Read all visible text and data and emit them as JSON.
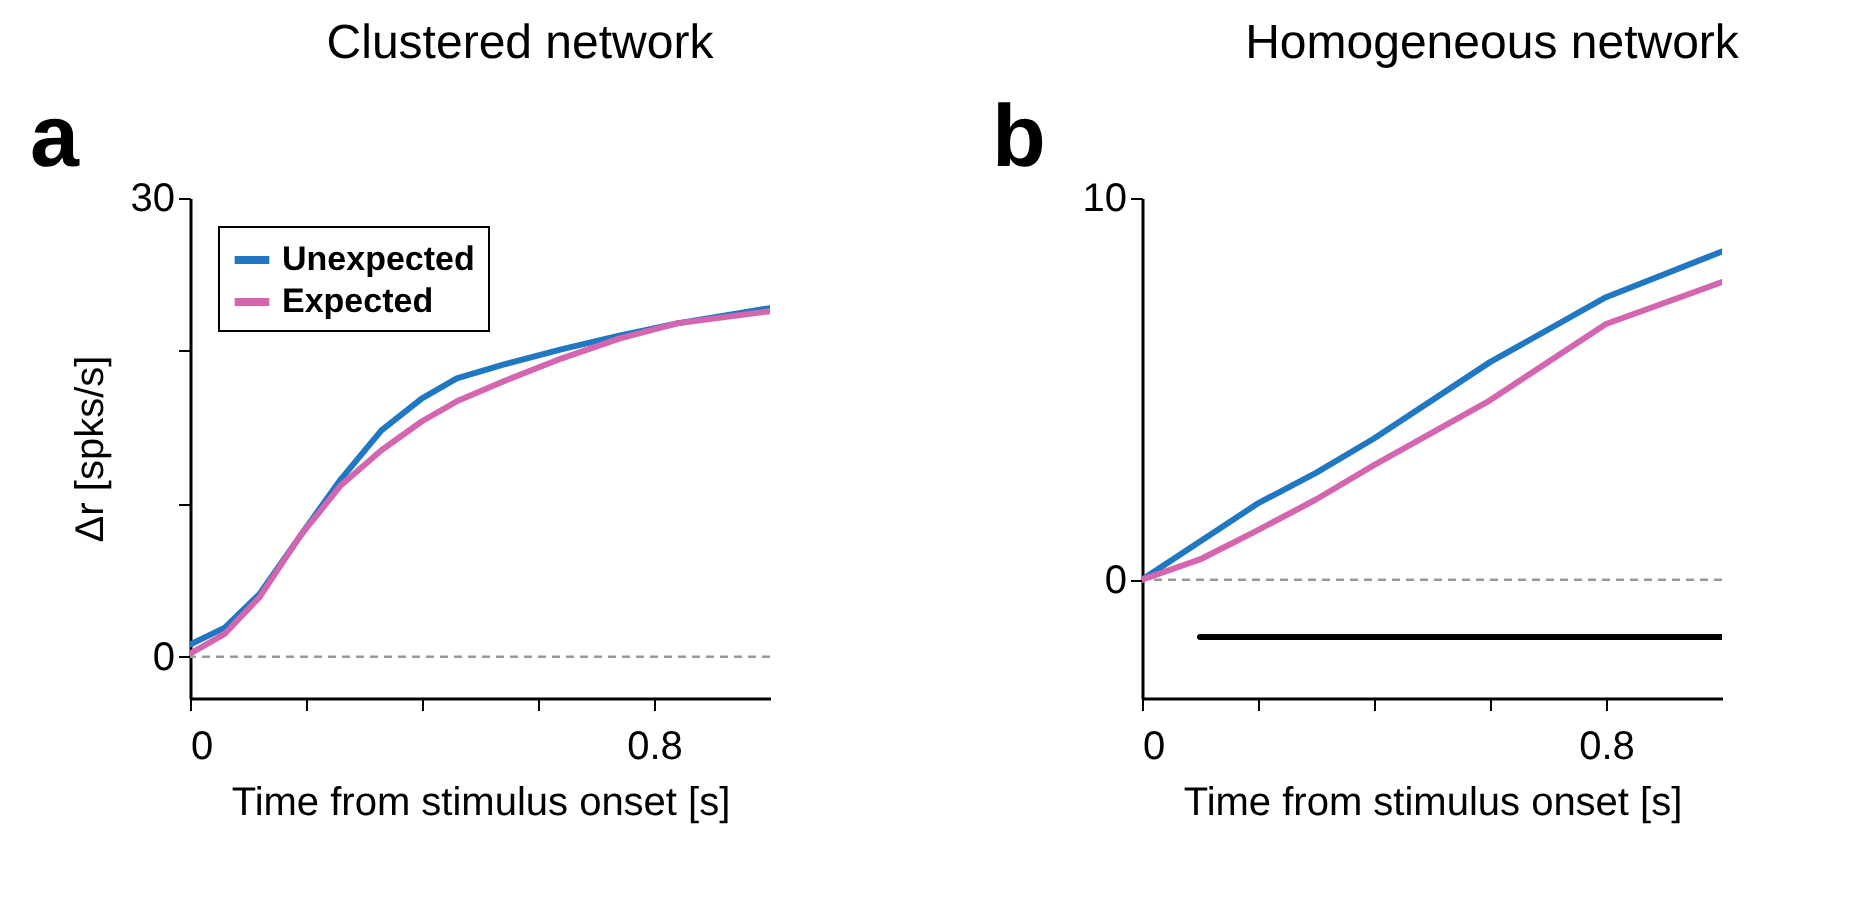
{
  "chart_data": [
    {
      "type": "line",
      "title": "Clustered network",
      "ylabel": "Δr [spks/s]",
      "xlabel": "Time from stimulus onset [s]",
      "annotations": [
        "a"
      ],
      "xlim": [
        0,
        1.0
      ],
      "xticks": [
        0,
        {
          "value": 0.2,
          "label": null
        },
        {
          "value": 0.4,
          "label": null
        },
        {
          "value": 0.6,
          "label": null
        },
        0.8
      ],
      "ylim": [
        -2.7,
        30
      ],
      "yticks": [
        0,
        {
          "value": 10,
          "label": null
        },
        {
          "value": 20,
          "label": null
        },
        30
      ],
      "legend": "top left",
      "grid": false,
      "line_style": "solid",
      "marker": "none",
      "ref_lines": [
        {
          "axis": "y",
          "value": 0,
          "color": "#999999",
          "line_style": "dashed"
        }
      ],
      "x": [
        0,
        0.06,
        0.12,
        0.19,
        0.26,
        0.33,
        0.4,
        0.46,
        0.54,
        0.64,
        0.74,
        0.84,
        1.0
      ],
      "series": [
        {
          "name": "Unexpected",
          "color": "#1f78c1",
          "values": [
            0.8,
            1.9,
            4.1,
            7.9,
            11.6,
            14.8,
            16.9,
            18.2,
            19.1,
            20.1,
            21.0,
            21.8,
            22.8
          ]
        },
        {
          "name": "Expected",
          "color": "#d466b0",
          "values": [
            0.2,
            1.5,
            3.9,
            7.9,
            11.2,
            13.5,
            15.4,
            16.7,
            18.0,
            19.5,
            20.8,
            21.8,
            22.6
          ]
        }
      ]
    },
    {
      "type": "line",
      "title": "Homogeneous network",
      "xlabel": "Time from stimulus onset [s]",
      "annotations": [
        "b"
      ],
      "xlim": [
        0,
        1.0
      ],
      "xticks": [
        0,
        {
          "value": 0.2,
          "label": null
        },
        {
          "value": 0.4,
          "label": null
        },
        {
          "value": 0.6,
          "label": null
        },
        0.8
      ],
      "ylim": [
        -3.1,
        10
      ],
      "yticks": [
        0,
        10
      ],
      "grid": false,
      "line_style": "solid",
      "marker": "none",
      "ref_lines": [
        {
          "axis": "y",
          "value": 0,
          "color": "#999999",
          "line_style": "dashed"
        }
      ],
      "x": [
        0,
        0.1,
        0.2,
        0.3,
        0.4,
        0.6,
        0.8,
        1.0
      ],
      "series": [
        {
          "color": "#1f78c1",
          "values": [
            0,
            1.0,
            2.0,
            2.8,
            3.7,
            5.7,
            7.4,
            8.6
          ]
        },
        {
          "color": "#d466b0",
          "values": [
            0,
            0.53,
            1.3,
            2.1,
            3.0,
            4.7,
            6.7,
            7.8
          ]
        },
        {
          "color": "#000000",
          "x": [
            0.1,
            1.0
          ],
          "values": [
            -1.5,
            -1.5
          ]
        }
      ]
    }
  ]
}
